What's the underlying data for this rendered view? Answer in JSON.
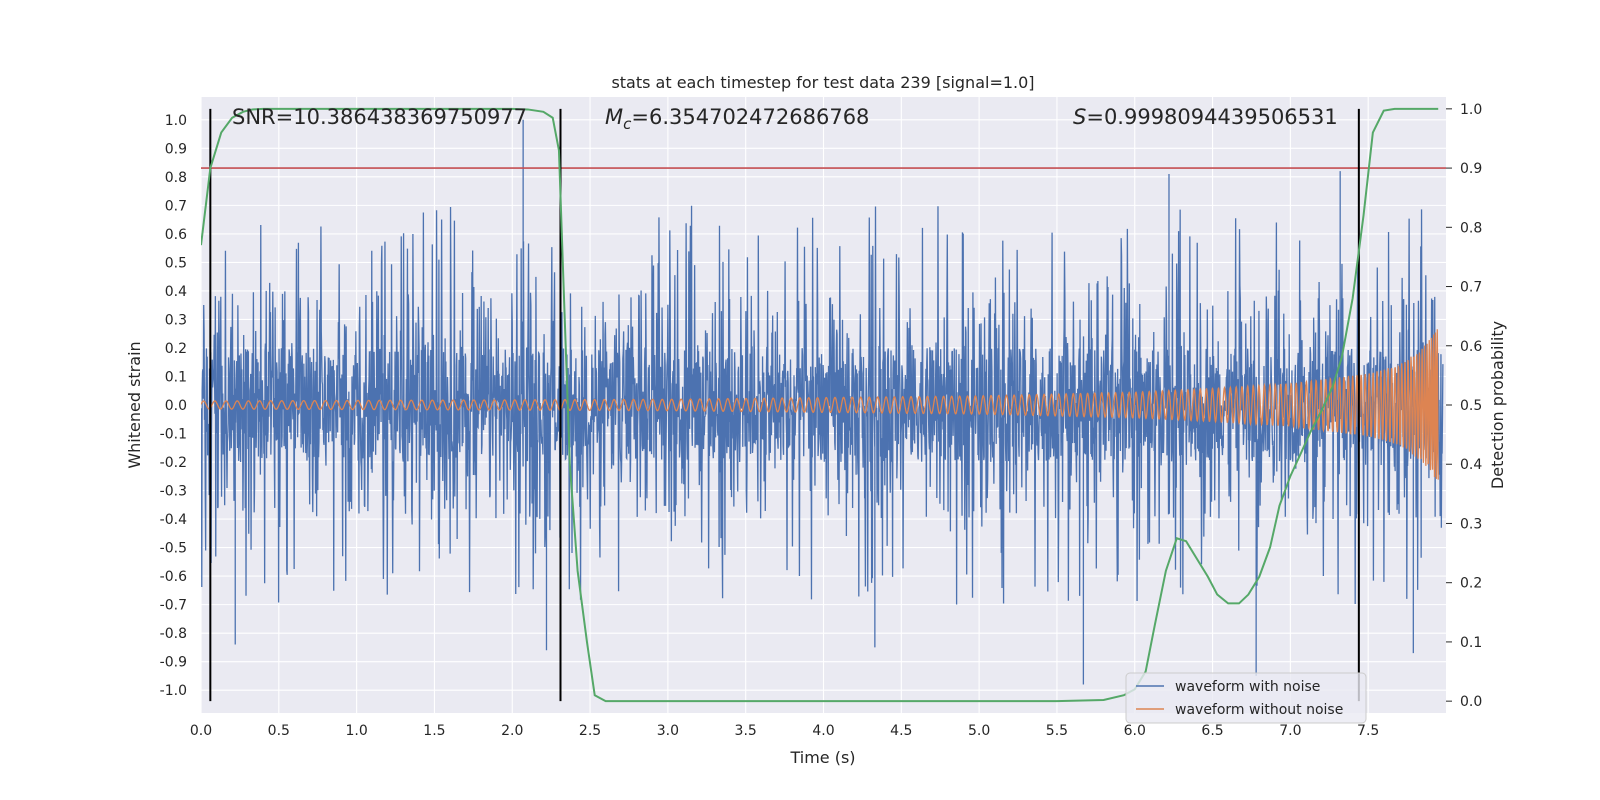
{
  "chart_data": {
    "type": "line",
    "title": "stats at each timestep for test data 239 [signal=1.0]",
    "xlabel": "Time (s)",
    "ylabel": "Whitened strain",
    "y2label": "Detection probability",
    "xlim": [
      0.0,
      8.0
    ],
    "ylim": [
      -1.08,
      1.08
    ],
    "y2lim": [
      -0.02,
      1.02
    ],
    "x_ticks": [
      "0.0",
      "0.5",
      "1.0",
      "1.5",
      "2.0",
      "2.5",
      "3.0",
      "3.5",
      "4.0",
      "4.5",
      "5.0",
      "5.5",
      "6.0",
      "6.5",
      "7.0",
      "7.5"
    ],
    "y_ticks": [
      "1.0",
      "0.9",
      "0.8",
      "0.7",
      "0.6",
      "0.5",
      "0.4",
      "0.3",
      "0.2",
      "0.1",
      "0.0",
      "-0.1",
      "-0.2",
      "-0.3",
      "-0.4",
      "-0.5",
      "-0.6",
      "-0.7",
      "-0.8",
      "-0.9",
      "-1.0"
    ],
    "y2_ticks": [
      "1.0",
      "0.9",
      "0.8",
      "0.7",
      "0.6",
      "0.5",
      "0.4",
      "0.3",
      "0.2",
      "0.1",
      "0.0"
    ],
    "annotations": {
      "snr": "SNR=10.386438369750977",
      "mc_symbol": "M",
      "mc_sub": "c",
      "mc_value": "=6.354702472686768",
      "s_symbol": "S",
      "s_value": "=0.9998094439506531"
    },
    "threshold": {
      "value": 0.9,
      "axis": "y2",
      "color": "#c44e52"
    },
    "vertical_lines": [
      0.06,
      2.31,
      7.44
    ],
    "legend": {
      "position": "lower-right",
      "entries": [
        {
          "label": "waveform with noise",
          "color": "#4c72b0"
        },
        {
          "label": "waveform without noise",
          "color": "#dd8452"
        }
      ]
    },
    "series": [
      {
        "name": "waveform with noise",
        "color": "#4c72b0",
        "noise_base_amplitude": 0.2,
        "extreme_spikes": [
          {
            "x": 0.22,
            "y": -0.84
          },
          {
            "x": 2.07,
            "y": 1.0
          },
          {
            "x": 2.22,
            "y": -0.86
          },
          {
            "x": 4.33,
            "y": -0.85
          },
          {
            "x": 5.67,
            "y": -0.98
          },
          {
            "x": 6.22,
            "y": 0.81
          },
          {
            "x": 6.78,
            "y": -0.95
          },
          {
            "x": 7.32,
            "y": 0.82
          },
          {
            "x": 7.79,
            "y": -0.87
          }
        ]
      },
      {
        "name": "waveform without noise",
        "color": "#dd8452",
        "model": "chirp",
        "envelope": {
          "x": [
            0.0,
            1.0,
            2.0,
            3.0,
            4.0,
            5.0,
            6.0,
            6.5,
            7.0,
            7.5,
            7.7,
            7.85,
            7.95
          ],
          "amp": [
            0.014,
            0.016,
            0.018,
            0.02,
            0.026,
            0.032,
            0.045,
            0.058,
            0.075,
            0.11,
            0.14,
            0.2,
            0.27
          ]
        }
      },
      {
        "name": "detection probability",
        "axis": "y2",
        "color": "#55a868",
        "x": [
          0.0,
          0.06,
          0.13,
          0.2,
          0.27,
          0.33,
          0.4,
          0.6,
          1.0,
          1.5,
          2.0,
          2.1,
          2.2,
          2.26,
          2.3,
          2.33,
          2.37,
          2.42,
          2.48,
          2.53,
          2.6,
          3.0,
          4.0,
          5.0,
          5.5,
          5.8,
          5.93,
          6.0,
          6.07,
          6.13,
          6.2,
          6.27,
          6.33,
          6.4,
          6.47,
          6.53,
          6.6,
          6.67,
          6.73,
          6.8,
          6.87,
          6.93,
          7.0,
          7.07,
          7.13,
          7.2,
          7.27,
          7.33,
          7.4,
          7.47,
          7.53,
          7.6,
          7.67,
          7.8,
          7.95
        ],
        "y": [
          0.77,
          0.9,
          0.96,
          0.985,
          0.995,
          0.999,
          1.0,
          1.0,
          1.0,
          1.0,
          1.0,
          0.999,
          0.995,
          0.985,
          0.93,
          0.7,
          0.4,
          0.22,
          0.1,
          0.01,
          0.0,
          0.0,
          0.0,
          0.0,
          0.0,
          0.002,
          0.01,
          0.02,
          0.05,
          0.13,
          0.22,
          0.275,
          0.27,
          0.24,
          0.21,
          0.18,
          0.165,
          0.165,
          0.18,
          0.21,
          0.26,
          0.33,
          0.38,
          0.42,
          0.455,
          0.49,
          0.53,
          0.58,
          0.68,
          0.82,
          0.96,
          0.997,
          1.0,
          1.0,
          1.0
        ]
      }
    ]
  }
}
